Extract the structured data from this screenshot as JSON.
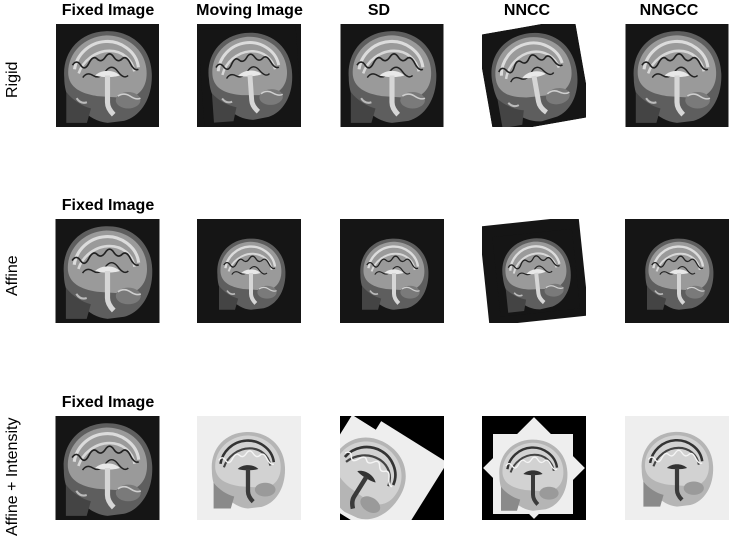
{
  "column_titles": [
    "Fixed Image",
    "Moving Image",
    "SD",
    "NNCC",
    "NNGCC"
  ],
  "row_labels": [
    "Rigid",
    "Affine",
    "Affine + Intensity"
  ],
  "row_fixed_titles": [
    "Fixed Image",
    "Fixed Image"
  ],
  "panels": {
    "rigid": [
      "fixed-brain-mri",
      "moving-brain-mri",
      "sd-result",
      "nncc-result",
      "nngcc-result"
    ],
    "affine": [
      "fixed-brain-mri",
      "moving-brain-mri",
      "sd-result",
      "nncc-result",
      "nngcc-result"
    ],
    "affine_intensity": [
      "fixed-brain-mri",
      "moving-brain-mri-inverted",
      "sd-result-inverted",
      "nncc-result-inverted",
      "nngcc-result-inverted"
    ]
  },
  "colors": {
    "mri_background": "#151515",
    "inverted_background": "#eeeeee",
    "black_fill": "#000000"
  }
}
